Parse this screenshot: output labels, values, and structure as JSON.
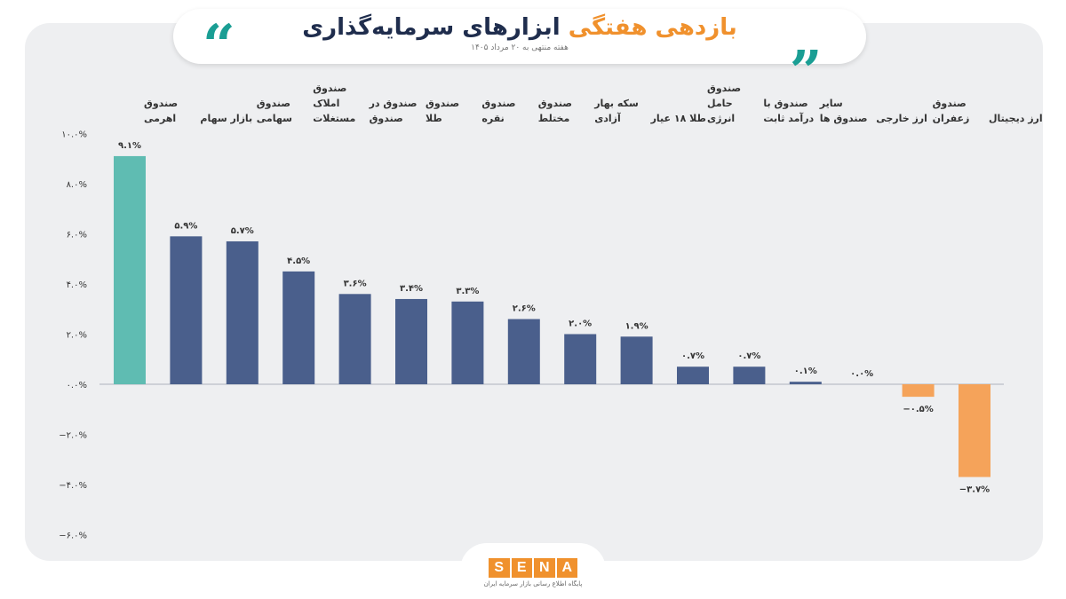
{
  "header": {
    "title_part1": "بازدهی هفتگی",
    "title_part2": "ابزارهای سرمایه‌گذاری",
    "subtitle": "هفته منتهی به ۲۰ مرداد ۱۴۰۵"
  },
  "footer": {
    "logo_letters": [
      "S",
      "E",
      "N",
      "A"
    ],
    "logo_caption": "پایگاه اطلاع رسانی بازار سرمایه ایران"
  },
  "colors": {
    "highlight": "#5fbcb2",
    "positive": "#4a5f8c",
    "negative": "#f5a35a",
    "accent": "#f0912d",
    "teal": "#1a9e94"
  },
  "chart_data": {
    "type": "bar",
    "categories": [
      [
        "صندوق",
        "اهرمی"
      ],
      [
        "بازار سهام"
      ],
      [
        "صندوق",
        "سهامی"
      ],
      [
        "صندوق",
        "املاک",
        "مستغلات"
      ],
      [
        "صندوق در",
        "صندوق"
      ],
      [
        "صندوق",
        "طلا"
      ],
      [
        "صندوق",
        "نقره"
      ],
      [
        "صندوق",
        "مختلط"
      ],
      [
        "سکه بهار",
        "آزادی"
      ],
      [
        "طلا ۱۸ عیار"
      ],
      [
        "صندوق",
        "حامل",
        "انرژی"
      ],
      [
        "صندوق با",
        "درآمد ثابت"
      ],
      [
        "سایر",
        "صندوق ها"
      ],
      [
        "ارز خارجی"
      ],
      [
        "صندوق",
        "زعفران"
      ],
      [
        "ارز دیجیتال"
      ]
    ],
    "values": [
      9.1,
      5.9,
      5.7,
      4.5,
      3.6,
      3.4,
      3.3,
      2.6,
      2.0,
      1.9,
      0.7,
      0.7,
      0.1,
      0.0,
      -0.5,
      -3.7
    ],
    "value_labels": [
      "۹.۱%",
      "۵.۹%",
      "۵.۷%",
      "۴.۵%",
      "۳.۶%",
      "۳.۴%",
      "۳.۳%",
      "۲.۶%",
      "۲.۰%",
      "۱.۹%",
      "۰.۷%",
      "۰.۷%",
      "۰.۱%",
      "۰.۰%",
      "−۰.۵%",
      "−۳.۷%"
    ],
    "ylim": [
      -6,
      10
    ],
    "yticks": [
      10,
      8,
      6,
      4,
      2,
      0,
      -2,
      -4,
      -6
    ],
    "ytick_labels": [
      "۱۰.۰%",
      "۸.۰%",
      "۶.۰%",
      "۴.۰%",
      "۲.۰%",
      "۰.۰%",
      "−۲.۰%",
      "−۴.۰%",
      "−۶.۰%"
    ],
    "grid": false
  }
}
